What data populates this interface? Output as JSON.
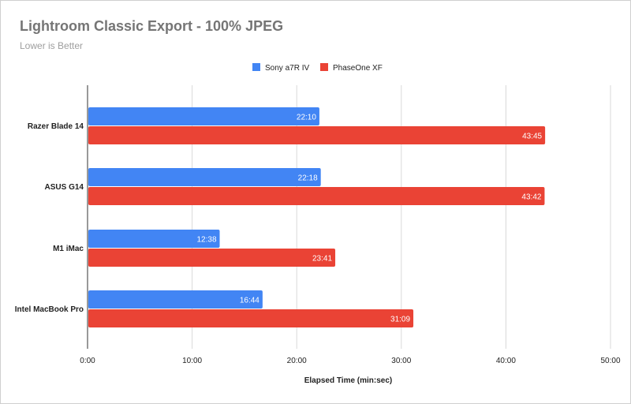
{
  "chart_data": {
    "type": "bar",
    "orientation": "horizontal",
    "title": "Lightroom Classic Export - 100% JPEG",
    "subtitle": "Lower is Better",
    "xlabel": "Elapsed Time (min:sec)",
    "ylabel": "",
    "xlim": [
      0,
      50
    ],
    "xticks": [
      0,
      10,
      20,
      30,
      40,
      50
    ],
    "xtick_labels": [
      "0:00",
      "10:00",
      "20:00",
      "30:00",
      "40:00",
      "50:00"
    ],
    "grid": true,
    "legend_position": "top",
    "categories": [
      "Razer Blade 14",
      "ASUS G14",
      "M1 iMac",
      "Intel MacBook Pro"
    ],
    "series": [
      {
        "name": "Sony a7R IV",
        "color": "#4285f4",
        "values": [
          22.1667,
          22.3,
          12.6333,
          16.7333
        ],
        "labels": [
          "22:10",
          "22:18",
          "12:38",
          "16:44"
        ]
      },
      {
        "name": "PhaseOne XF",
        "color": "#ea4335",
        "values": [
          43.75,
          43.7,
          23.6833,
          31.15
        ],
        "labels": [
          "43:45",
          "43:42",
          "23:41",
          "31:09"
        ]
      }
    ]
  }
}
